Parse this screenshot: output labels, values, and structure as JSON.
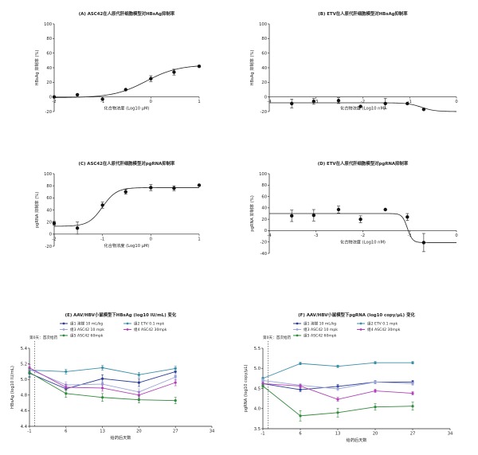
{
  "chart_data": [
    {
      "id": "A",
      "type": "scatter",
      "title": "(A) ASC42在人原代肝细胞模型对HBsAg抑制率",
      "xlabel": "化合物浓度 (Log10 μM)",
      "ylabel": "HBsAg 抑制率 (%)",
      "xlim": [
        -2,
        1
      ],
      "ylim": [
        -20,
        100
      ],
      "xticks": [
        "-2",
        "-1",
        "0",
        "1"
      ],
      "yticks": [
        "-20",
        "0",
        "20",
        "40",
        "60",
        "80",
        "100"
      ],
      "points": [
        {
          "x": -2.0,
          "y": 0
        },
        {
          "x": -1.52,
          "y": 3
        },
        {
          "x": -1.0,
          "y": -3
        },
        {
          "x": -0.52,
          "y": 10
        },
        {
          "x": 0.0,
          "y": 25,
          "err": 4
        },
        {
          "x": 0.48,
          "y": 34,
          "err": 4
        },
        {
          "x": 1.0,
          "y": 42
        }
      ],
      "fit": {
        "bottom": -1,
        "top": 44,
        "ec50": -0.1,
        "hill": 1.3
      }
    },
    {
      "id": "B",
      "type": "scatter",
      "title": "(B) ETV在人原代肝细胞模型对HBsAg抑制率",
      "xlabel": "化合物浓度 (Log10 nM)",
      "ylabel": "HBsAg 抑制率 (%)",
      "xlim": [
        -4,
        0
      ],
      "ylim": [
        -20,
        100
      ],
      "xticks": [
        "-4",
        "-3",
        "-2",
        "-1",
        "0"
      ],
      "yticks": [
        "-20",
        "0",
        "20",
        "40",
        "60",
        "80",
        "100"
      ],
      "points": [
        {
          "x": -3.52,
          "y": -9,
          "err": 6
        },
        {
          "x": -3.05,
          "y": -6,
          "err": 4
        },
        {
          "x": -2.52,
          "y": -5,
          "err": 4
        },
        {
          "x": -2.05,
          "y": -13
        },
        {
          "x": -1.52,
          "y": -9,
          "err": 7
        },
        {
          "x": -1.05,
          "y": -9
        },
        {
          "x": -0.7,
          "y": -17
        }
      ],
      "fit": {
        "bottom": -20,
        "top": -8,
        "ec50": -0.75,
        "hill": -3
      }
    },
    {
      "id": "C",
      "type": "scatter",
      "title": "(C) ASC42在人原代肝细胞模型对pgRNA抑制率",
      "xlabel": "化合物浓度 (Log10 μM)",
      "ylabel": "pgRNA 抑制率 (%)",
      "xlim": [
        -2,
        1
      ],
      "ylim": [
        -20,
        100
      ],
      "xticks": [
        "-2",
        "-1",
        "0",
        "1"
      ],
      "yticks": [
        "-20",
        "0",
        "20",
        "40",
        "60",
        "80",
        "100"
      ],
      "points": [
        {
          "x": -2.0,
          "y": 18,
          "err": 3
        },
        {
          "x": -1.52,
          "y": 10,
          "err": 10
        },
        {
          "x": -1.0,
          "y": 48,
          "err": 5
        },
        {
          "x": -0.52,
          "y": 70,
          "err": 4
        },
        {
          "x": 0.0,
          "y": 77,
          "err": 5
        },
        {
          "x": 0.48,
          "y": 76,
          "err": 4
        },
        {
          "x": 1.0,
          "y": 81
        }
      ],
      "fit": {
        "bottom": 13,
        "top": 77,
        "ec50": -1.0,
        "hill": 3
      }
    },
    {
      "id": "D",
      "type": "scatter",
      "title": "(D) ETV在人原代肝细胞模型对pgRNA抑制率",
      "xlabel": "化合物浓度 (Log10 nM)",
      "ylabel": "pgRNA 抑制率 (%)",
      "xlim": [
        -4,
        0
      ],
      "ylim": [
        -40,
        100
      ],
      "xticks": [
        "-4",
        "-3",
        "-2",
        "-1",
        "0"
      ],
      "yticks": [
        "-40",
        "-20",
        "0",
        "20",
        "40",
        "60",
        "80",
        "100"
      ],
      "points": [
        {
          "x": -3.52,
          "y": 26,
          "err": 10
        },
        {
          "x": -3.05,
          "y": 27,
          "err": 10
        },
        {
          "x": -2.52,
          "y": 37,
          "err": 6
        },
        {
          "x": -2.05,
          "y": 20,
          "err": 6
        },
        {
          "x": -1.52,
          "y": 37
        },
        {
          "x": -1.05,
          "y": 24,
          "err": 6
        },
        {
          "x": -0.7,
          "y": -21,
          "err": 16
        }
      ],
      "fit": {
        "bottom": -21,
        "top": 30,
        "ec50": -1.05,
        "hill": -8
      }
    },
    {
      "id": "E",
      "type": "line",
      "title": "(E) AAV/HBV小鼠模型下HBsAg (log10 IU/mL) 变化",
      "xlabel": "给药后天数",
      "ylabel": "HBsAg (log10 IU/mL)",
      "xlim": [
        -1,
        34
      ],
      "ylim": [
        4.4,
        5.4
      ],
      "xticks": [
        "-1",
        "6",
        "13",
        "20",
        "27",
        "34"
      ],
      "yticks": [
        "4.4",
        "4.6",
        "4.8",
        "5.0",
        "5.2",
        "5.4"
      ],
      "x": [
        -1,
        6,
        13,
        20,
        27
      ],
      "annotation": "第0天：首次给药",
      "legend_position": "top",
      "series": [
        {
          "name": "组1 溶媒 10 mL/kg",
          "color": "#2a3b9a",
          "values": [
            5.08,
            4.88,
            5.01,
            4.96,
            5.1
          ],
          "err": [
            0.05,
            0.05,
            0.05,
            0.05,
            0.05
          ]
        },
        {
          "name": "组2 ETV 0.1 mpk",
          "color": "#3a8fa8",
          "values": [
            5.12,
            5.1,
            5.15,
            5.06,
            5.14
          ],
          "err": [
            0.03,
            0.03,
            0.03,
            0.03,
            0.03
          ]
        },
        {
          "name": "组3 ASC42 10 mpk",
          "color": "#9aa4d8",
          "values": [
            5.13,
            4.93,
            4.94,
            4.84,
            5.03
          ],
          "err": [
            0.04,
            0.04,
            0.04,
            0.04,
            0.04
          ]
        },
        {
          "name": "组4 ASC42 30mpk",
          "color": "#b040b8",
          "values": [
            5.15,
            4.9,
            4.89,
            4.8,
            4.96
          ],
          "err": [
            0.04,
            0.04,
            0.04,
            0.04,
            0.04
          ]
        },
        {
          "name": "组5 ASC42 60mpk",
          "color": "#2e8a3a",
          "values": [
            5.09,
            4.82,
            4.77,
            4.74,
            4.73
          ],
          "err": [
            0.05,
            0.05,
            0.05,
            0.04,
            0.04
          ]
        }
      ]
    },
    {
      "id": "F",
      "type": "line",
      "title": "(F) AAV/HBV小鼠模型下pgRNA (log10 copy/μL) 变化",
      "xlabel": "给药后天数",
      "ylabel": "pgRNA (log10 copy/μL)",
      "xlim": [
        -1,
        34
      ],
      "ylim": [
        3.5,
        5.5
      ],
      "xticks": [
        "-1",
        "6",
        "13",
        "20",
        "27",
        "34"
      ],
      "yticks": [
        "3.5",
        "4.0",
        "4.5",
        "5.0",
        "5.5"
      ],
      "x": [
        -1,
        6,
        13,
        20,
        27
      ],
      "annotation": "第0天：首次给药",
      "legend_position": "top",
      "series": [
        {
          "name": "组1 溶媒 10 mL/kg",
          "color": "#2a3b9a",
          "values": [
            4.62,
            4.47,
            4.55,
            4.66,
            4.66
          ],
          "err": [
            0.05,
            0.05,
            0.05,
            0.04,
            0.04
          ]
        },
        {
          "name": "组2 ETV 0.1 mpk",
          "color": "#3a8fa8",
          "values": [
            4.75,
            5.12,
            5.05,
            5.14,
            5.14
          ],
          "err": [
            0.03,
            0.03,
            0.03,
            0.03,
            0.03
          ]
        },
        {
          "name": "组3 ASC42 10 mpk",
          "color": "#9aa4d8",
          "values": [
            4.7,
            4.58,
            4.49,
            4.66,
            4.62
          ],
          "err": [
            0.04,
            0.04,
            0.04,
            0.04,
            0.04
          ]
        },
        {
          "name": "组4 ASC42 30mpk",
          "color": "#b040b8",
          "values": [
            4.62,
            4.56,
            4.23,
            4.44,
            4.38
          ],
          "err": [
            0.04,
            0.04,
            0.05,
            0.04,
            0.04
          ]
        },
        {
          "name": "组5 ASC42 60mpk",
          "color": "#2e8a3a",
          "values": [
            4.56,
            3.82,
            3.9,
            4.04,
            4.06
          ],
          "err": [
            0.05,
            0.13,
            0.11,
            0.08,
            0.1
          ]
        }
      ]
    }
  ]
}
